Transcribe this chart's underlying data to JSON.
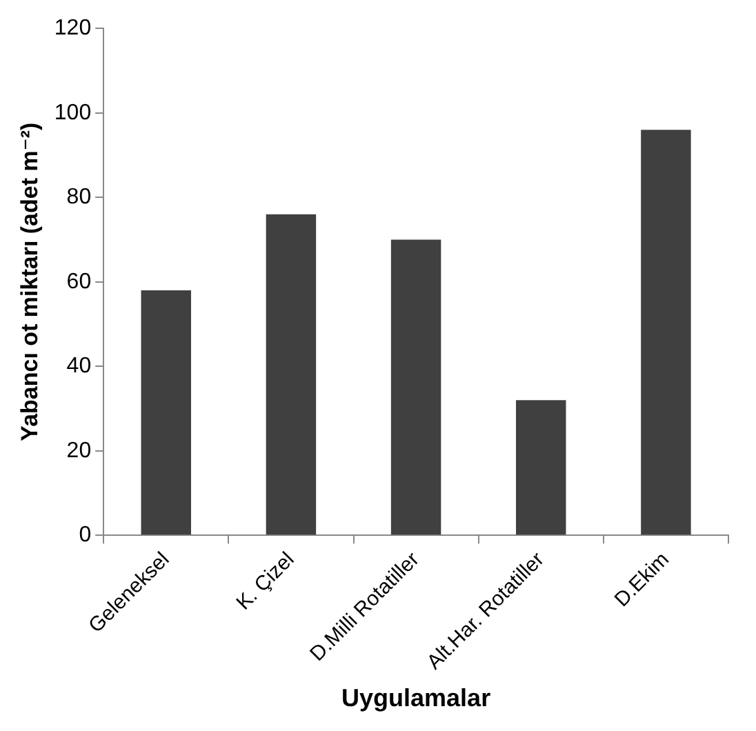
{
  "chart_data": {
    "type": "bar",
    "xlabel": "Uygulamalar",
    "ylabel": "Yabancı ot miktarı (adet m⁻²)",
    "categories": [
      "Geleneksel",
      "K. Çizel",
      "D.Milli Rotatiller",
      "Alt.Har. Rotatiller",
      "D.Ekim"
    ],
    "values": [
      58,
      76,
      70,
      32,
      96
    ],
    "color": "#404040",
    "ylim": [
      0,
      120
    ],
    "yticks": [
      0,
      20,
      40,
      60,
      80,
      100,
      120
    ],
    "grid": false,
    "legend": false
  }
}
